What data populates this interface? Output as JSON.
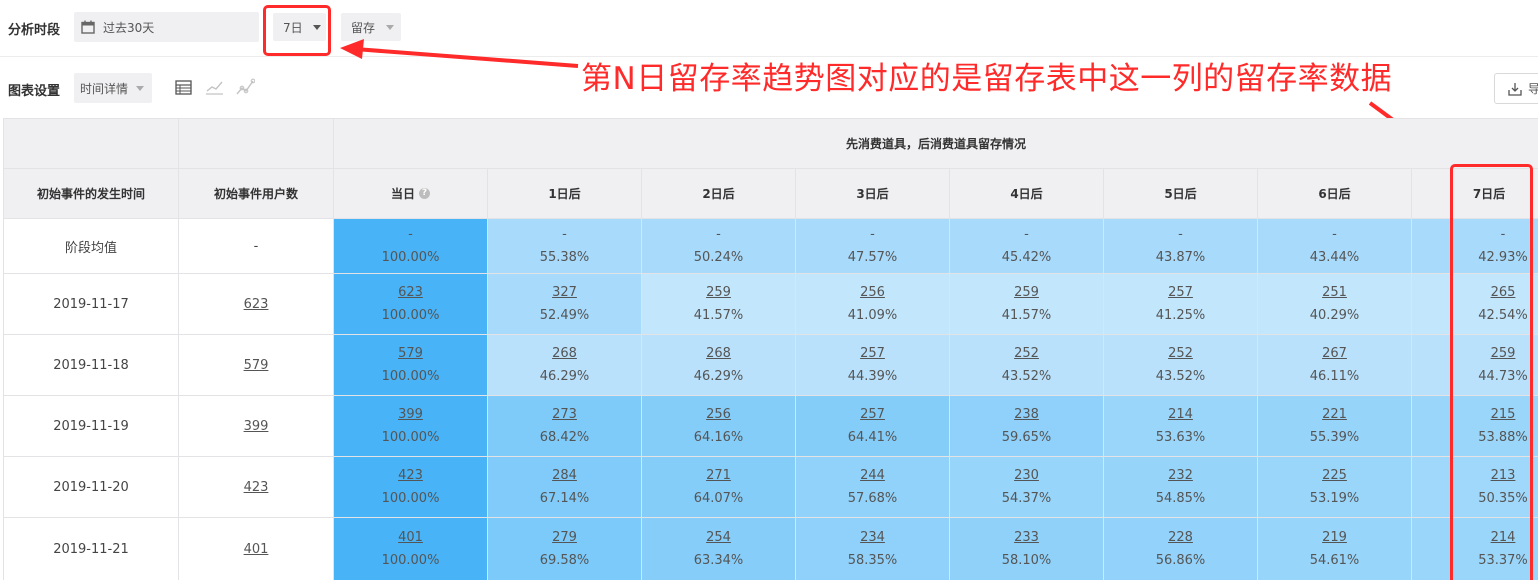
{
  "toolbar": {
    "period_label": "分析时段",
    "date_range": "过去30天",
    "day_select": "7日",
    "type_select": "留存",
    "chart_settings_label": "图表设置",
    "detail_select": "时间详情",
    "export_label": "导"
  },
  "annotation": {
    "text": "第N日留存率趋势图对应的是留存表中这一列的留存率数据"
  },
  "table": {
    "group_header": "先消费道具，后消费道具留存情况",
    "col_time": "初始事件的发生时间",
    "col_users": "初始事件用户数",
    "day_headers": [
      "当日",
      "1日后",
      "2日后",
      "3日后",
      "4日后",
      "5日后",
      "6日后",
      "7日后"
    ],
    "rows": [
      {
        "label": "阶段均值",
        "users": "-",
        "cells": [
          [
            "-",
            "100.00%"
          ],
          [
            "-",
            "55.38%"
          ],
          [
            "-",
            "50.24%"
          ],
          [
            "-",
            "47.57%"
          ],
          [
            "-",
            "45.42%"
          ],
          [
            "-",
            "43.87%"
          ],
          [
            "-",
            "43.44%"
          ],
          [
            "-",
            "42.93%"
          ]
        ]
      },
      {
        "label": "2019-11-17",
        "users": "623",
        "cells": [
          [
            "623",
            "100.00%"
          ],
          [
            "327",
            "52.49%"
          ],
          [
            "259",
            "41.57%"
          ],
          [
            "256",
            "41.09%"
          ],
          [
            "259",
            "41.57%"
          ],
          [
            "257",
            "41.25%"
          ],
          [
            "251",
            "40.29%"
          ],
          [
            "265",
            "42.54%"
          ]
        ]
      },
      {
        "label": "2019-11-18",
        "users": "579",
        "cells": [
          [
            "579",
            "100.00%"
          ],
          [
            "268",
            "46.29%"
          ],
          [
            "268",
            "46.29%"
          ],
          [
            "257",
            "44.39%"
          ],
          [
            "252",
            "43.52%"
          ],
          [
            "252",
            "43.52%"
          ],
          [
            "267",
            "46.11%"
          ],
          [
            "259",
            "44.73%"
          ]
        ]
      },
      {
        "label": "2019-11-19",
        "users": "399",
        "cells": [
          [
            "399",
            "100.00%"
          ],
          [
            "273",
            "68.42%"
          ],
          [
            "256",
            "64.16%"
          ],
          [
            "257",
            "64.41%"
          ],
          [
            "238",
            "59.65%"
          ],
          [
            "214",
            "53.63%"
          ],
          [
            "221",
            "55.39%"
          ],
          [
            "215",
            "53.88%"
          ]
        ]
      },
      {
        "label": "2019-11-20",
        "users": "423",
        "cells": [
          [
            "423",
            "100.00%"
          ],
          [
            "284",
            "67.14%"
          ],
          [
            "271",
            "64.07%"
          ],
          [
            "244",
            "57.68%"
          ],
          [
            "230",
            "54.37%"
          ],
          [
            "232",
            "54.85%"
          ],
          [
            "225",
            "53.19%"
          ],
          [
            "213",
            "50.35%"
          ]
        ]
      },
      {
        "label": "2019-11-21",
        "users": "401",
        "cells": [
          [
            "401",
            "100.00%"
          ],
          [
            "279",
            "69.58%"
          ],
          [
            "254",
            "63.34%"
          ],
          [
            "234",
            "58.35%"
          ],
          [
            "233",
            "58.10%"
          ],
          [
            "228",
            "56.86%"
          ],
          [
            "219",
            "54.61%"
          ],
          [
            "214",
            "53.37%"
          ]
        ]
      }
    ]
  },
  "colors": {
    "annotation_red": "#ff2a2a",
    "day0_cell": "#49b3f7",
    "heat_dark": "#7ecbf9",
    "heat_mid": "#a8dafb",
    "heat_light": "#c2e6fc",
    "header_bg": "#f0f0f3"
  }
}
